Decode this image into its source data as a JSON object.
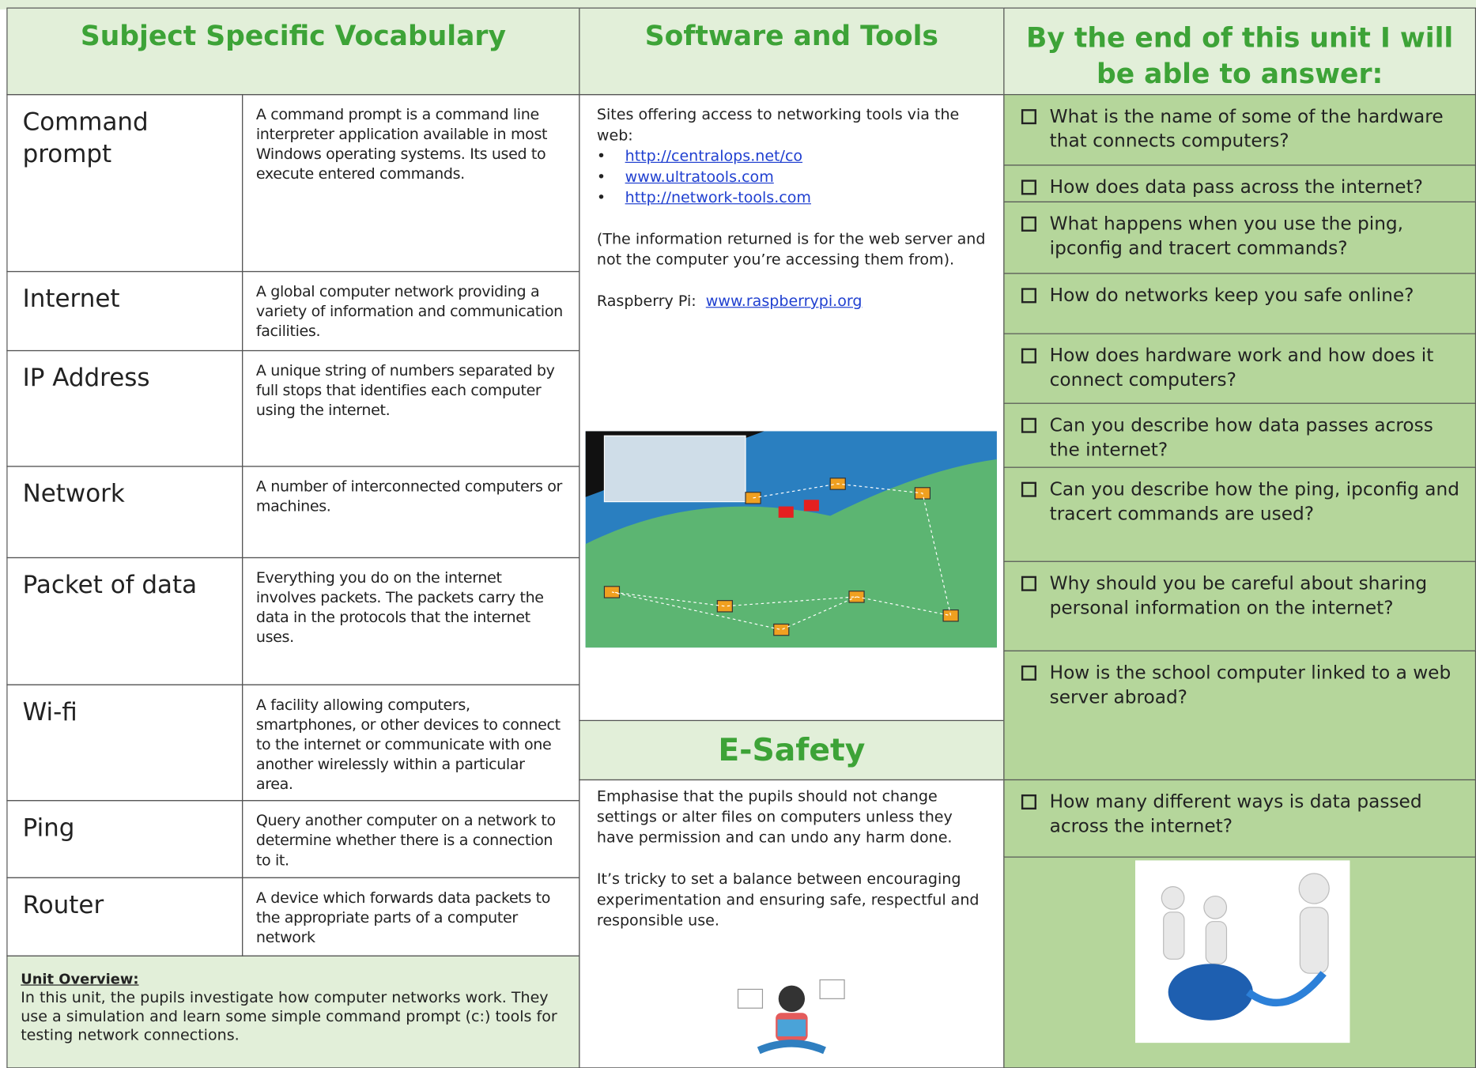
{
  "headers": {
    "vocabulary": "Subject Specific Vocabulary",
    "software": "Software and Tools",
    "questions": "By the end of this unit I will be able to answer:"
  },
  "vocabulary": [
    {
      "term": "Command prompt",
      "definition": "A command prompt is a command line interpreter application available in most Windows operating systems. Its used to execute entered commands."
    },
    {
      "term": "Internet",
      "definition": "A global computer network providing a variety of information and communication facilities."
    },
    {
      "term": "IP Address",
      "definition": "A unique string of numbers separated by full stops that identifies each computer using the internet."
    },
    {
      "term": "Network",
      "definition": "A number of interconnected computers or machines."
    },
    {
      "term": "Packet of data",
      "definition": "Everything you do on the internet involves packets. The packets carry the data in the protocols that the internet uses."
    },
    {
      "term": "Wi-fi",
      "definition": "A facility allowing computers, smartphones, or other devices to connect to the internet or communicate with one another wirelessly within a particular area."
    },
    {
      "term": "Ping",
      "definition": "Query another computer on a network to determine whether there is a connection to it."
    },
    {
      "term": "Router",
      "definition": "A device which forwards data packets to the appropriate parts of a computer network"
    }
  ],
  "overview": {
    "label": "Unit Overview:",
    "text": "In this unit, the pupils investigate how computer networks work. They use a simulation and learn some simple command prompt (c:) tools for testing network connections."
  },
  "software": {
    "intro": "Sites offering access to networking tools via the web:",
    "links": [
      "http://centralops.net/co",
      "www.ultratools.com",
      "http://network-tools.com"
    ],
    "note": "(The information returned is for the web server and not the computer you’re accessing them from).",
    "raspberry_label": "Raspberry Pi:",
    "raspberry_link": "www.raspberrypi.org"
  },
  "esafety": {
    "title": "E-Safety",
    "paragraphs": [
      "Emphasise that the pupils should not change settings or alter files on computers unless they have permission and can undo any harm done.",
      "It’s tricky to set a balance between encouraging experimentation and ensuring safe, respectful and responsible use."
    ]
  },
  "questions": [
    "What is the name of some of the hardware that connects computers?",
    "How does data pass across the internet?",
    "What happens when you use the ping, ipconfig and tracert commands?",
    "How do networks keep you safe online?",
    "How does hardware work and how does it connect computers?",
    "Can you describe how data passes across the internet?",
    "Can you describe how the ping, ipconfig and tracert commands are used?",
    "Why should you be careful about sharing personal information on the internet?",
    "How is the school computer linked to a web server abroad?",
    "How many different ways is data passed across the internet?"
  ]
}
